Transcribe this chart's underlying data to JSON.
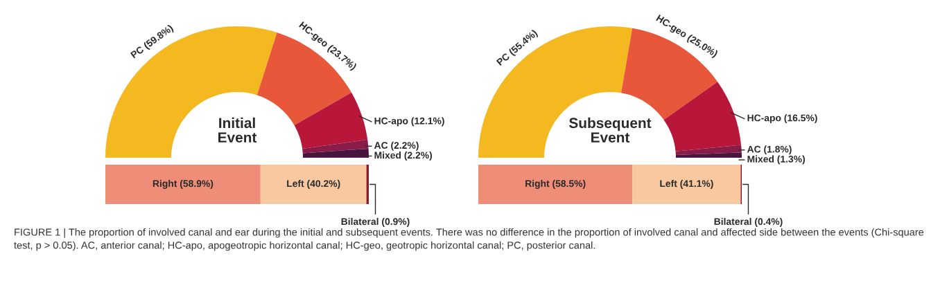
{
  "chart_data": [
    {
      "type": "donut",
      "title": "Initial Event",
      "categories": [
        "PC (59.8%)",
        "HC-geo (23.7%)",
        "HC-apo (12.1%)",
        "AC (2.2%)",
        "Mixed (2.2%)"
      ],
      "values": [
        59.8,
        23.7,
        12.1,
        2.2,
        2.2
      ],
      "colors": [
        "#f4b920",
        "#e8573a",
        "#b8173a",
        "#8a1c4a",
        "#4a1440"
      ],
      "annotations": [
        "FIGURE 1 | The proportion of involved canal and ear during the initial and subsequent events. There was no difference in the proportion of involved canal and affected side between the events (Chi-square test, p > 0.05). AC, anterior canal; HC-apo, apogeotropic horizontal canal; HC-geo, geotropic horizontal canal; PC, posterior canal."
      ]
    },
    {
      "type": "bar",
      "orientation": "horizontal",
      "stacked": true,
      "categories": [
        null
      ],
      "series": [
        {
          "color": "#ef8e78",
          "values": [
            58.9
          ],
          "value_labels": [
            "Right (58.9%)"
          ]
        },
        {
          "color": "#f8c9a0",
          "values": [
            40.2
          ],
          "value_labels": [
            "Left (40.2%)"
          ]
        },
        {
          "color": "#8b1a2a",
          "values": [
            0.9
          ],
          "value_labels": [
            "Bilateral (0.9%)"
          ]
        }
      ]
    },
    {
      "type": "donut",
      "title": "Subsequent Event",
      "categories": [
        "PC (55.4%)",
        "HC-geo (25.0%)",
        "HC-apo (16.5%)",
        "AC (1.8%)",
        "Mixed (1.3%)"
      ],
      "values": [
        55.4,
        25.0,
        16.5,
        1.8,
        1.3
      ],
      "colors": [
        "#f4b920",
        "#e8573a",
        "#b8173a",
        "#8a1c4a",
        "#4a1440"
      ]
    },
    {
      "type": "bar",
      "orientation": "horizontal",
      "stacked": true,
      "categories": [
        null
      ],
      "series": [
        {
          "color": "#ef8e78",
          "values": [
            58.5
          ],
          "value_labels": [
            "Right (58.5%)"
          ]
        },
        {
          "color": "#f8c9a0",
          "values": [
            41.1
          ],
          "value_labels": [
            "Left (41.1%)"
          ]
        },
        {
          "color": "#8b1a2a",
          "values": [
            0.4
          ],
          "value_labels": [
            "Bilateral (0.4%)"
          ]
        }
      ]
    }
  ]
}
